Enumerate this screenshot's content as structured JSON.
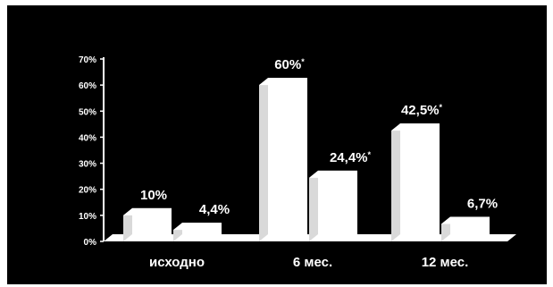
{
  "colors": {
    "background": "#000000",
    "bars": "#ffffff",
    "axis": "#ffffff",
    "text": "#ffffff"
  },
  "chart_data": {
    "type": "bar",
    "title": "",
    "xlabel": "",
    "ylabel": "",
    "ylim": [
      0,
      70
    ],
    "yticks": [
      "0%",
      "10%",
      "20%",
      "30%",
      "40%",
      "50%",
      "60%",
      "70%"
    ],
    "categories": [
      "исходно",
      "6 мес.",
      "12 мес."
    ],
    "grid": false,
    "legend": "none",
    "style": "3d",
    "series": [
      {
        "values": [
          10,
          60,
          42.5
        ],
        "labels": [
          "10%",
          "60%",
          "42,5%"
        ],
        "marks": [
          "",
          "*",
          "*"
        ]
      },
      {
        "values": [
          4.4,
          24.4,
          6.7
        ],
        "labels": [
          "4,4%",
          "24,4%",
          "6,7%"
        ],
        "marks": [
          "",
          "*",
          ""
        ]
      }
    ]
  }
}
